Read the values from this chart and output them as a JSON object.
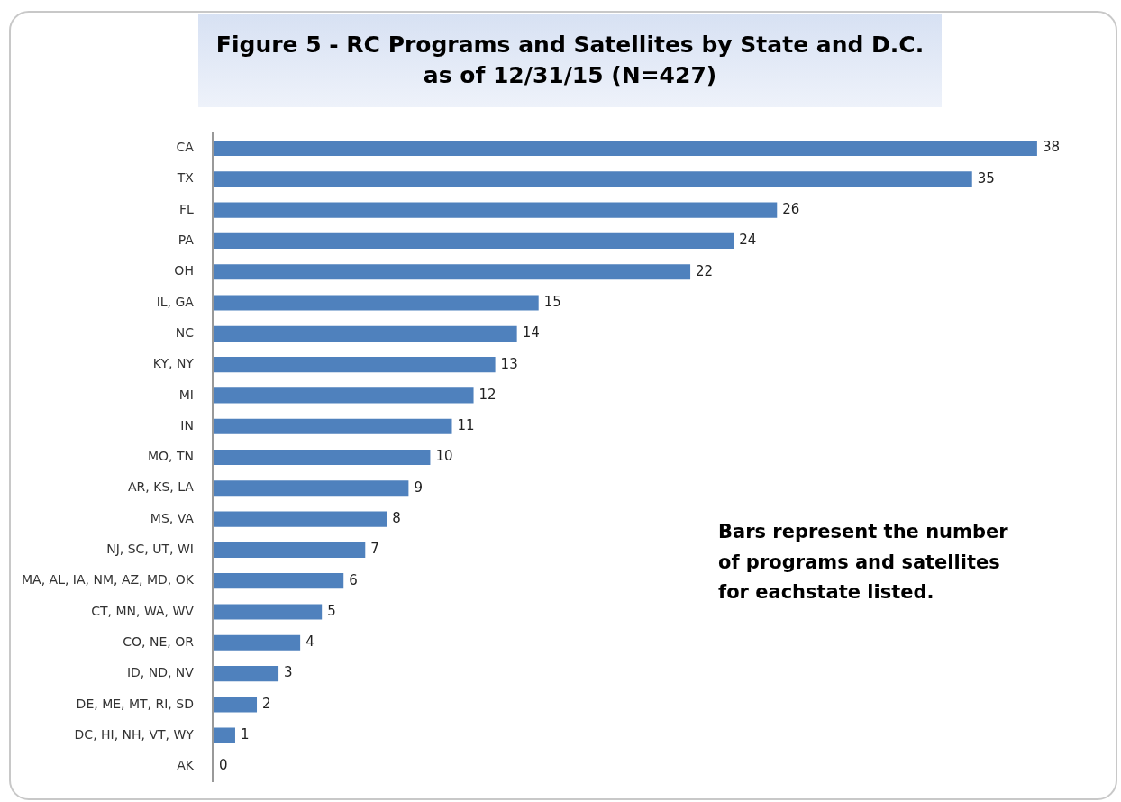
{
  "chart_data": {
    "type": "bar",
    "orientation": "horizontal",
    "title": "Figure 5 - RC Programs and Satellites by State and D.C.\nas of 12/31/15 (N=427)",
    "categories": [
      "CA",
      "TX",
      "FL",
      "PA",
      "OH",
      "IL, GA",
      "NC",
      "KY, NY",
      "MI",
      "IN",
      "MO, TN",
      "AR, KS, LA",
      "MS, VA",
      "NJ, SC, UT, WI",
      "MA, AL, IA, NM, AZ, MD, OK",
      "CT, MN, WA, WV",
      "CO, NE, OR",
      "ID, ND, NV",
      "DE, ME, MT, RI, SD",
      "DC, HI, NH, VT, WY",
      "AK"
    ],
    "values": [
      38,
      35,
      26,
      24,
      22,
      15,
      14,
      13,
      12,
      11,
      10,
      9,
      8,
      7,
      6,
      5,
      4,
      3,
      2,
      1,
      0
    ],
    "color": "#4f81bd",
    "data_labels": true,
    "grid": false,
    "legend": false,
    "tick_labels": "y",
    "annotations": [
      "Bars represent the number of programs and satellites for eachstate listed."
    ]
  }
}
